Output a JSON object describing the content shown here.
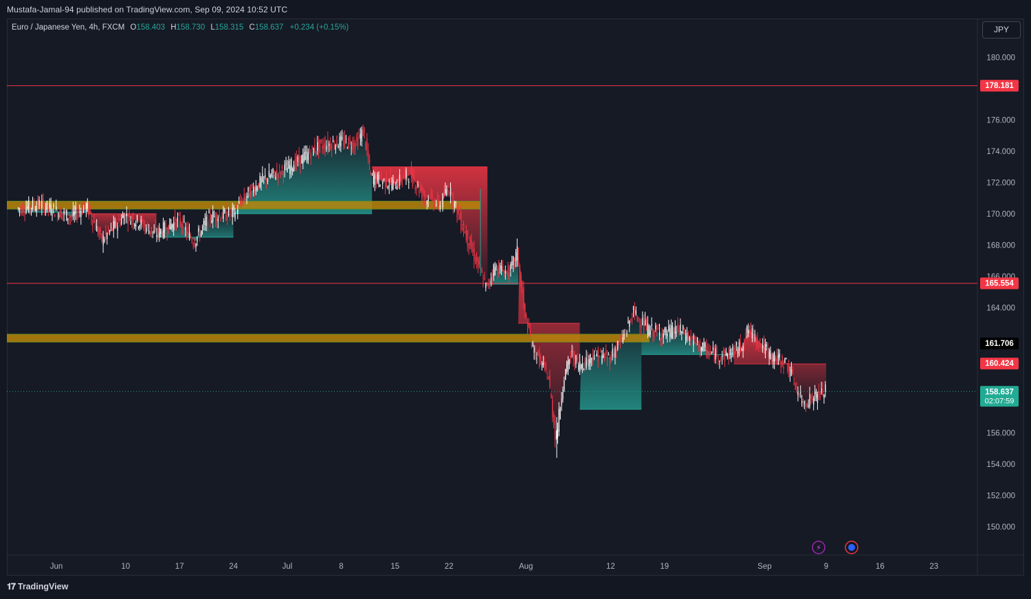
{
  "header": {
    "published": "Mustafa-Jamal-94 published on TradingView.com, Sep 09, 2024 10:52 UTC"
  },
  "legend": {
    "symbol": "Euro / Japanese Yen, 4h, FXCM",
    "open_label": "O",
    "open": "158.403",
    "high_label": "H",
    "high": "158.730",
    "low_label": "L",
    "low": "158.315",
    "close_label": "C",
    "close": "158.637",
    "change": "+0.234 (+0.15%)"
  },
  "currency_button": "JPY",
  "footer": {
    "brand": "TradingView"
  },
  "colors": {
    "background": "#161a25",
    "up": "#26a69a",
    "down": "#f23645",
    "zone": "#b8860b",
    "hline": "#f23645",
    "candle_up": "#ffffff"
  },
  "chart_data": {
    "type": "candlestick",
    "symbol": "EURJPY",
    "interval": "4h",
    "ylim": [
      148.2,
      181.4
    ],
    "y_ticks": [
      150,
      152,
      154,
      156,
      158,
      160,
      162,
      164,
      166,
      168,
      170,
      172,
      174,
      176,
      178,
      180
    ],
    "y_tick_labels": [
      "150.000",
      "152.000",
      "154.000",
      "156.000",
      "",
      "",
      "",
      "164.000",
      "166.000",
      "168.000",
      "170.000",
      "172.000",
      "174.000",
      "176.000",
      "",
      "180.000"
    ],
    "x_ticks": [
      {
        "label": "Jun",
        "date": "2024-06-01"
      },
      {
        "label": "10",
        "date": "2024-06-10"
      },
      {
        "label": "17",
        "date": "2024-06-17"
      },
      {
        "label": "24",
        "date": "2024-06-24"
      },
      {
        "label": "Jul",
        "date": "2024-07-01"
      },
      {
        "label": "8",
        "date": "2024-07-08"
      },
      {
        "label": "15",
        "date": "2024-07-15"
      },
      {
        "label": "22",
        "date": "2024-07-22"
      },
      {
        "label": "Aug",
        "date": "2024-08-01"
      },
      {
        "label": "12",
        "date": "2024-08-12"
      },
      {
        "label": "19",
        "date": "2024-08-19"
      },
      {
        "label": "Sep",
        "date": "2024-09-01"
      },
      {
        "label": "9",
        "date": "2024-09-09"
      },
      {
        "label": "16",
        "date": "2024-09-16"
      },
      {
        "label": "23",
        "date": "2024-09-23"
      }
    ],
    "price_path": [
      [
        "2024-05-27",
        170.3
      ],
      [
        "2024-05-30",
        170.6
      ],
      [
        "2024-06-03",
        169.8
      ],
      [
        "2024-06-05",
        170.5
      ],
      [
        "2024-06-07",
        168.3
      ],
      [
        "2024-06-10",
        169.9
      ],
      [
        "2024-06-12",
        169.4
      ],
      [
        "2024-06-14",
        168.7
      ],
      [
        "2024-06-17",
        169.6
      ],
      [
        "2024-06-19",
        168.2
      ],
      [
        "2024-06-21",
        169.8
      ],
      [
        "2024-06-24",
        170.0
      ],
      [
        "2024-06-26",
        171.3
      ],
      [
        "2024-06-28",
        172.2
      ],
      [
        "2024-07-01",
        172.9
      ],
      [
        "2024-07-03",
        173.5
      ],
      [
        "2024-07-05",
        174.3
      ],
      [
        "2024-07-08",
        174.6
      ],
      [
        "2024-07-10",
        174.5
      ],
      [
        "2024-07-11",
        175.3
      ],
      [
        "2024-07-12",
        172.3
      ],
      [
        "2024-07-15",
        171.9
      ],
      [
        "2024-07-17",
        172.5
      ],
      [
        "2024-07-19",
        171.0
      ],
      [
        "2024-07-21",
        170.6
      ],
      [
        "2024-07-22",
        171.7
      ],
      [
        "2024-07-24",
        169.0
      ],
      [
        "2024-07-26",
        166.5
      ],
      [
        "2024-07-27",
        165.2
      ],
      [
        "2024-07-28",
        166.6
      ],
      [
        "2024-07-30",
        166.2
      ],
      [
        "2024-07-31",
        167.6
      ],
      [
        "2024-08-01",
        163.5
      ],
      [
        "2024-08-02",
        161.4
      ],
      [
        "2024-08-04",
        159.6
      ],
      [
        "2024-08-05",
        155.5
      ],
      [
        "2024-08-06",
        159.5
      ],
      [
        "2024-08-07",
        161.0
      ],
      [
        "2024-08-08",
        160.3
      ],
      [
        "2024-08-10",
        161.0
      ],
      [
        "2024-08-12",
        160.8
      ],
      [
        "2024-08-14",
        162.3
      ],
      [
        "2024-08-15",
        163.7
      ],
      [
        "2024-08-17",
        162.6
      ],
      [
        "2024-08-19",
        162.3
      ],
      [
        "2024-08-21",
        162.6
      ],
      [
        "2024-08-23",
        161.8
      ],
      [
        "2024-08-25",
        161.1
      ],
      [
        "2024-08-27",
        160.9
      ],
      [
        "2024-08-29",
        161.5
      ],
      [
        "2024-08-30",
        162.6
      ],
      [
        "2024-09-02",
        160.9
      ],
      [
        "2024-09-04",
        160.4
      ],
      [
        "2024-09-06",
        157.9
      ],
      [
        "2024-09-09",
        158.637
      ]
    ],
    "supertrend_bands": [
      {
        "trend": "up",
        "from": "2024-05-27",
        "to": "2024-06-05",
        "level": 170.1
      },
      {
        "trend": "down",
        "from": "2024-06-05",
        "to": "2024-06-14",
        "level": 170.0
      },
      {
        "trend": "up",
        "from": "2024-06-14",
        "to": "2024-06-24",
        "level": 168.5
      },
      {
        "trend": "up",
        "from": "2024-06-24",
        "to": "2024-07-12",
        "level": 170.0
      },
      {
        "trend": "down",
        "from": "2024-07-12",
        "to": "2024-07-27",
        "level": 173.0
      },
      {
        "trend": "up",
        "from": "2024-07-27",
        "to": "2024-07-31",
        "level": 165.5
      },
      {
        "trend": "down",
        "from": "2024-07-31",
        "to": "2024-08-08",
        "level": 163.0
      },
      {
        "trend": "up",
        "from": "2024-08-08",
        "to": "2024-08-16",
        "level": 157.5
      },
      {
        "trend": "up",
        "from": "2024-08-16",
        "to": "2024-08-28",
        "level": 161.0
      },
      {
        "trend": "down",
        "from": "2024-08-28",
        "to": "2024-09-09",
        "level": 160.4
      }
    ],
    "zones": [
      {
        "top": 170.8,
        "bottom": 170.3,
        "from": "2024-05-27",
        "to": "2024-07-26"
      },
      {
        "top": 162.3,
        "bottom": 161.8,
        "from": "2024-05-27",
        "to": "2024-08-17"
      }
    ],
    "horizontal_lines": [
      {
        "price": 178.181,
        "label": "178.181",
        "color": "#f23645"
      },
      {
        "price": 165.554,
        "label": "165.554",
        "color": "#f23645"
      }
    ],
    "price_tags": [
      {
        "price": 161.706,
        "label": "161.706",
        "bg": "#000000",
        "fg": "#ffffff"
      },
      {
        "price": 160.424,
        "label": "160.424",
        "bg": "#f23645",
        "fg": "#ffffff"
      },
      {
        "price": 158.637,
        "label": "158.637",
        "sub": "02:07:59",
        "bg": "#22ab94",
        "fg": "#ffffff"
      }
    ],
    "last_price": 158.637
  }
}
